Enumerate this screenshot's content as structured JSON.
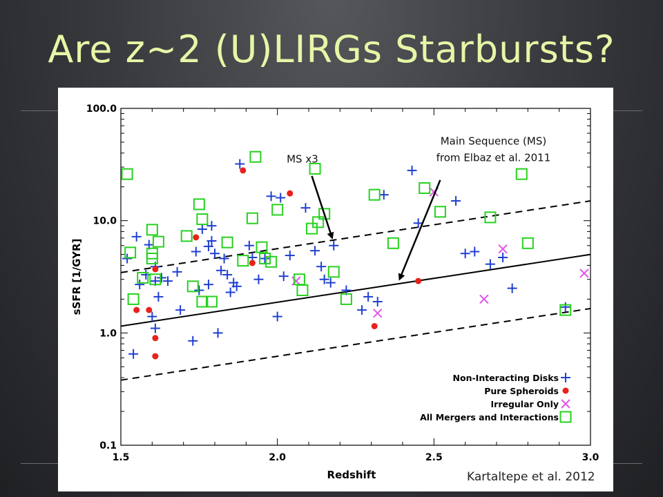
{
  "slide": {
    "title": "Are z~2 (U)LIRGs Starbursts?",
    "credit": "Kartaltepe et al. 2012"
  },
  "chart_data": {
    "type": "scatter",
    "xlabel": "Redshift",
    "ylabel": "sSFR [1/GYR]",
    "xlim": [
      1.5,
      3.0
    ],
    "ylim": [
      0.1,
      100.0
    ],
    "yscale": "log",
    "xticks": [
      "1.5",
      "2.0",
      "2.5",
      "3.0"
    ],
    "yticks": [
      "0.1",
      "1.0",
      "10.0",
      "100.0"
    ],
    "legend_position": "bottom-right",
    "series": [
      {
        "name": "Non-Interacting Disks",
        "marker": "plus",
        "color": "#1f3fd0",
        "points": [
          [
            1.52,
            4.6
          ],
          [
            1.54,
            0.65
          ],
          [
            1.55,
            7.2
          ],
          [
            1.56,
            2.7
          ],
          [
            1.58,
            3.3
          ],
          [
            1.59,
            6.1
          ],
          [
            1.6,
            1.4
          ],
          [
            1.61,
            2.9
          ],
          [
            1.61,
            1.1
          ],
          [
            1.62,
            2.1
          ],
          [
            1.63,
            3.1
          ],
          [
            1.65,
            2.9
          ],
          [
            1.68,
            3.5
          ],
          [
            1.69,
            1.6
          ],
          [
            1.73,
            0.85
          ],
          [
            1.74,
            5.3
          ],
          [
            1.75,
            2.4
          ],
          [
            1.76,
            8.4
          ],
          [
            1.78,
            5.9
          ],
          [
            1.78,
            2.7
          ],
          [
            1.79,
            9.0
          ],
          [
            1.79,
            6.6
          ],
          [
            1.8,
            5.1
          ],
          [
            1.81,
            1.0
          ],
          [
            1.82,
            3.6
          ],
          [
            1.83,
            4.6
          ],
          [
            1.84,
            3.3
          ],
          [
            1.85,
            2.3
          ],
          [
            1.86,
            2.8
          ],
          [
            1.87,
            2.6
          ],
          [
            1.88,
            32
          ],
          [
            1.91,
            6.0
          ],
          [
            1.92,
            4.7
          ],
          [
            1.94,
            3.0
          ],
          [
            1.96,
            4.6
          ],
          [
            1.98,
            16.5
          ],
          [
            2.0,
            1.4
          ],
          [
            2.01,
            16.0
          ],
          [
            2.02,
            3.2
          ],
          [
            2.04,
            4.9
          ],
          [
            2.09,
            13.0
          ],
          [
            2.12,
            5.4
          ],
          [
            2.14,
            3.9
          ],
          [
            2.15,
            3.0
          ],
          [
            2.17,
            2.8
          ],
          [
            2.18,
            6.0
          ],
          [
            2.22,
            2.4
          ],
          [
            2.27,
            1.6
          ],
          [
            2.29,
            2.1
          ],
          [
            2.32,
            1.9
          ],
          [
            2.34,
            17.0
          ],
          [
            2.43,
            28.0
          ],
          [
            2.45,
            9.5
          ],
          [
            2.57,
            15.0
          ],
          [
            2.6,
            5.1
          ],
          [
            2.63,
            5.3
          ],
          [
            2.68,
            4.1
          ],
          [
            2.72,
            4.7
          ],
          [
            2.75,
            2.5
          ],
          [
            2.92,
            1.7
          ],
          [
            1.61,
            3.9
          ]
        ]
      },
      {
        "name": "Pure Spheroids",
        "marker": "dot",
        "color": "#e8211c",
        "points": [
          [
            1.55,
            1.6
          ],
          [
            1.59,
            1.6
          ],
          [
            1.61,
            3.7
          ],
          [
            1.61,
            0.9
          ],
          [
            1.61,
            0.62
          ],
          [
            1.74,
            7.1
          ],
          [
            1.89,
            28.0
          ],
          [
            1.92,
            4.2
          ],
          [
            2.04,
            17.5
          ],
          [
            2.31,
            1.15
          ],
          [
            2.45,
            2.9
          ]
        ]
      },
      {
        "name": "Irregular Only",
        "marker": "cross",
        "color": "#e257e8",
        "points": [
          [
            2.06,
            2.9
          ],
          [
            2.32,
            1.5
          ],
          [
            2.5,
            18.0
          ],
          [
            2.66,
            2.0
          ],
          [
            2.72,
            5.6
          ],
          [
            2.98,
            3.4
          ]
        ]
      },
      {
        "name": "All Mergers and Interactions",
        "marker": "square",
        "color": "#26d11e",
        "points": [
          [
            1.52,
            26.0
          ],
          [
            1.53,
            5.2
          ],
          [
            1.54,
            2.0
          ],
          [
            1.57,
            3.1
          ],
          [
            1.6,
            8.3
          ],
          [
            1.6,
            5.1
          ],
          [
            1.6,
            4.6
          ],
          [
            1.61,
            3.0
          ],
          [
            1.62,
            6.5
          ],
          [
            1.71,
            7.3
          ],
          [
            1.73,
            2.6
          ],
          [
            1.75,
            14.0
          ],
          [
            1.76,
            10.3
          ],
          [
            1.76,
            1.9
          ],
          [
            1.79,
            1.9
          ],
          [
            1.84,
            6.4
          ],
          [
            1.89,
            4.4
          ],
          [
            1.92,
            10.5
          ],
          [
            1.93,
            37.0
          ],
          [
            1.95,
            5.8
          ],
          [
            1.96,
            4.6
          ],
          [
            1.98,
            4.3
          ],
          [
            2.0,
            12.5
          ],
          [
            2.07,
            3.0
          ],
          [
            2.08,
            2.4
          ],
          [
            2.11,
            8.5
          ],
          [
            2.12,
            29.0
          ],
          [
            2.13,
            9.7
          ],
          [
            2.15,
            11.5
          ],
          [
            2.18,
            3.5
          ],
          [
            2.22,
            2.0
          ],
          [
            2.31,
            17.0
          ],
          [
            2.37,
            6.3
          ],
          [
            2.47,
            19.5
          ],
          [
            2.52,
            12.0
          ],
          [
            2.68,
            10.7
          ],
          [
            2.78,
            26.0
          ],
          [
            2.8,
            6.3
          ],
          [
            2.92,
            1.6
          ]
        ]
      }
    ],
    "lines": [
      {
        "style": "solid",
        "points": [
          [
            1.5,
            1.15
          ],
          [
            3.0,
            5.0
          ]
        ]
      },
      {
        "style": "dashed",
        "points": [
          [
            1.5,
            3.45
          ],
          [
            3.0,
            15.0
          ]
        ]
      },
      {
        "style": "dashed",
        "points": [
          [
            1.5,
            0.38
          ],
          [
            3.0,
            1.65
          ]
        ]
      }
    ],
    "annotations": [
      {
        "lines": [
          "MS x3"
        ],
        "text_center": [
          2.08,
          33.0
        ],
        "arrow_from": [
          2.11,
          25.0
        ],
        "arrow_to": [
          2.175,
          7.0
        ]
      },
      {
        "lines": [
          "Main Sequence (MS)",
          "from Elbaz et al. 2011"
        ],
        "text_center": [
          2.69,
          40.0
        ],
        "arrow_from": [
          2.52,
          23.0
        ],
        "arrow_to": [
          2.39,
          3.0
        ]
      }
    ]
  }
}
